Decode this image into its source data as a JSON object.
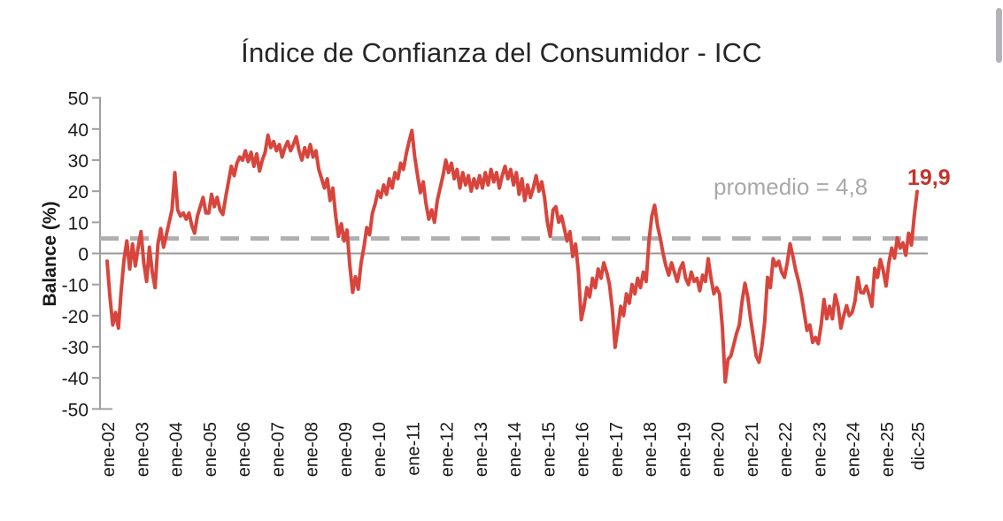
{
  "chart_data": {
    "type": "line",
    "title": "Índice de Confianza del Consumidor - ICC",
    "legend": false,
    "grid": false,
    "y_axis": {
      "title": "Balance (%)",
      "ticks": [
        50,
        40,
        30,
        20,
        10,
        0,
        -10,
        -20,
        -30,
        -40,
        -50
      ],
      "range": [
        -50,
        50
      ]
    },
    "x_axis": {
      "ticks": [
        {
          "label": "ene-02",
          "month_index": 0
        },
        {
          "label": "ene-03",
          "month_index": 12
        },
        {
          "label": "ene-04",
          "month_index": 24
        },
        {
          "label": "ene-05",
          "month_index": 36
        },
        {
          "label": "ene-06",
          "month_index": 48
        },
        {
          "label": "ene-07",
          "month_index": 60
        },
        {
          "label": "ene-08",
          "month_index": 72
        },
        {
          "label": "ene-09",
          "month_index": 84
        },
        {
          "label": "ene-10",
          "month_index": 96
        },
        {
          "label": "ene-11",
          "month_index": 108
        },
        {
          "label": "ene-12",
          "month_index": 120
        },
        {
          "label": "ene-13",
          "month_index": 132
        },
        {
          "label": "ene-14",
          "month_index": 144
        },
        {
          "label": "ene-15",
          "month_index": 156
        },
        {
          "label": "ene-16",
          "month_index": 168
        },
        {
          "label": "ene-17",
          "month_index": 180
        },
        {
          "label": "ene-18",
          "month_index": 192
        },
        {
          "label": "ene-19",
          "month_index": 204
        },
        {
          "label": "ene-20",
          "month_index": 216
        },
        {
          "label": "ene-21",
          "month_index": 228
        },
        {
          "label": "ene-22",
          "month_index": 240
        },
        {
          "label": "ene-23",
          "month_index": 252
        },
        {
          "label": "ene-24",
          "month_index": 264
        },
        {
          "label": "ene-25",
          "month_index": 276
        },
        {
          "label": "dic-25",
          "month_index": 287
        }
      ]
    },
    "series": {
      "name": "ICC",
      "start": "ene-02",
      "end": "dic-25",
      "frequency": "monthly",
      "values": [
        -2.5,
        -14,
        -23,
        -19,
        -24,
        -12,
        -2,
        4,
        -5,
        3,
        -4,
        2,
        7,
        -3,
        -9,
        2,
        -6,
        -11,
        3,
        8,
        2,
        6,
        10,
        14,
        26,
        14,
        12,
        13,
        11,
        13,
        9,
        6.5,
        12,
        15,
        18,
        13,
        13,
        19,
        15,
        18,
        14,
        12.5,
        18,
        23,
        28,
        25,
        29,
        31,
        30,
        33,
        29.5,
        32.5,
        28,
        32,
        26.5,
        30,
        32.5,
        38,
        34,
        36,
        33,
        35,
        31,
        34,
        36,
        33,
        35,
        37.5,
        33,
        30,
        34,
        31,
        35,
        31,
        33,
        27,
        24,
        21,
        24,
        17,
        21,
        12,
        5.5,
        9.5,
        4,
        7.5,
        -4,
        -12.5,
        -7.5,
        -11.5,
        -3,
        2,
        8.3,
        6,
        13,
        16,
        20,
        18,
        22,
        19,
        24,
        21,
        26,
        24,
        29,
        27,
        32,
        36,
        39.5,
        31,
        25,
        19.5,
        23,
        16,
        11,
        14,
        10,
        17,
        21,
        25,
        30,
        26,
        29,
        24,
        27,
        21,
        26,
        22,
        25,
        20,
        24,
        21,
        25,
        21,
        26,
        22,
        27,
        23,
        26,
        21,
        25,
        28,
        24,
        27,
        22,
        26,
        19,
        24,
        17,
        22,
        18,
        21,
        25,
        20,
        23,
        18,
        10,
        5.5,
        14,
        15,
        10,
        12,
        8,
        4,
        7,
        -1,
        3,
        -6,
        -21.3,
        -17,
        -11,
        -14,
        -8,
        -11,
        -5,
        -8,
        -3,
        -6,
        -10,
        -18,
        -30.2,
        -24,
        -17,
        -20,
        -13,
        -16,
        -10,
        -13,
        -8,
        -11,
        -6,
        -9,
        4,
        12,
        15.5,
        9,
        5,
        0,
        -4,
        -7,
        -3,
        -6,
        -9,
        -5,
        -3,
        -8,
        -10,
        -6,
        -9,
        -8,
        -12,
        -7,
        -9,
        -1.7,
        -8,
        -13,
        -11,
        -13,
        -23.8,
        -41.3,
        -34,
        -33,
        -29.5,
        -25.8,
        -23,
        -15.3,
        -9.6,
        -14,
        -21,
        -27,
        -33,
        -35,
        -30,
        -22,
        -7.7,
        -11,
        -1.7,
        -4,
        -2.5,
        -6,
        -7.7,
        -3,
        3.1,
        -1,
        -5.5,
        -9,
        -13.3,
        -19,
        -24.7,
        -23,
        -28.6,
        -27,
        -29,
        -23,
        -14.8,
        -21,
        -17,
        -21,
        -13.3,
        -17,
        -24,
        -20,
        -16.8,
        -20,
        -19,
        -15.3,
        -7.7,
        -12.5,
        -12.7,
        -10.5,
        -13.5,
        -17,
        -4.8,
        -7.7,
        -2,
        -5.5,
        -10.5,
        -3,
        1.7,
        -1.5,
        5,
        1.7,
        3.4,
        -0.6,
        6.5,
        2.7,
        12.2,
        19.9
      ]
    },
    "average_value": 4.8,
    "annotations": {
      "average_label": "promedio = 4,8",
      "last_value_label": "19,9",
      "last_value": 19.9
    },
    "colors": {
      "line": "#d8453c",
      "last_value_text": "#c5322a",
      "average_line": "#b0b0b0",
      "average_text": "#a8a8a8",
      "zero_line": "#9a9a9a",
      "axis": "#a0a0a0",
      "tick_text": "#1a1a1a",
      "title_text": "#262626"
    }
  }
}
